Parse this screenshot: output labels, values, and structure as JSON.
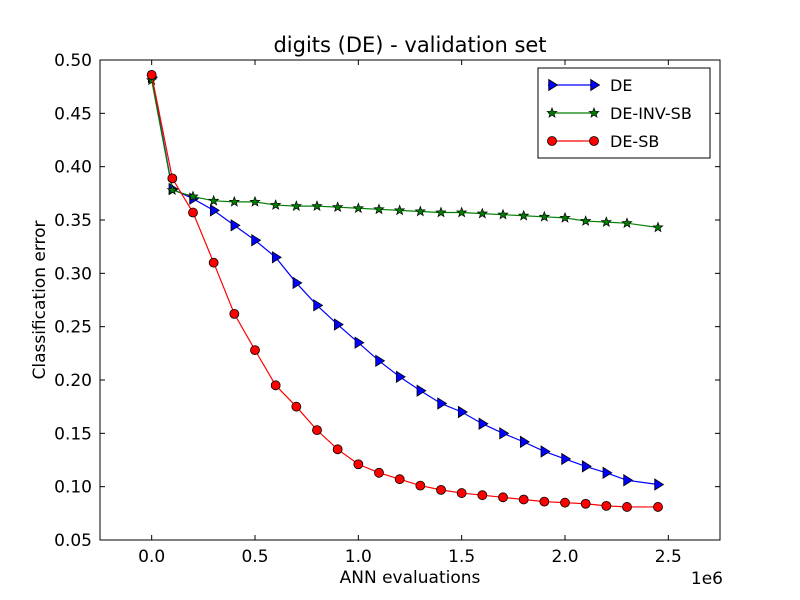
{
  "chart_data": {
    "type": "line",
    "title": "digits (DE) - validation set",
    "xlabel": "ANN evaluations",
    "ylabel": "Classification error",
    "x_multiplier_label": "1e6",
    "x_multiplier": 1000000,
    "xlim": [
      -0.25,
      2.75
    ],
    "ylim": [
      0.05,
      0.5
    ],
    "xticks": [
      0.0,
      0.5,
      1.0,
      1.5,
      2.0,
      2.5
    ],
    "xtick_labels": [
      "0.0",
      "0.5",
      "1.0",
      "1.5",
      "2.0",
      "2.5"
    ],
    "yticks": [
      0.05,
      0.1,
      0.15,
      0.2,
      0.25,
      0.3,
      0.35,
      0.4,
      0.45,
      0.5
    ],
    "ytick_labels": [
      "0.05",
      "0.10",
      "0.15",
      "0.20",
      "0.25",
      "0.30",
      "0.35",
      "0.40",
      "0.45",
      "0.50"
    ],
    "grid": false,
    "legend_position": "top-right",
    "x": [
      0.0,
      0.1,
      0.2,
      0.3,
      0.4,
      0.5,
      0.6,
      0.7,
      0.8,
      0.9,
      1.0,
      1.1,
      1.2,
      1.3,
      1.4,
      1.5,
      1.6,
      1.7,
      1.8,
      1.9,
      2.0,
      2.1,
      2.2,
      2.3,
      2.45
    ],
    "series": [
      {
        "name": "DE",
        "color": "#0000ff",
        "marker": "triangle-right",
        "values": [
          0.484,
          0.379,
          0.37,
          0.359,
          0.345,
          0.331,
          0.315,
          0.291,
          0.27,
          0.252,
          0.235,
          0.218,
          0.203,
          0.19,
          0.178,
          0.17,
          0.159,
          0.15,
          0.142,
          0.133,
          0.126,
          0.119,
          0.113,
          0.106,
          0.102
        ]
      },
      {
        "name": "DE-INV-SB",
        "color": "#008000",
        "marker": "star",
        "values": [
          0.481,
          0.378,
          0.372,
          0.368,
          0.367,
          0.367,
          0.364,
          0.363,
          0.363,
          0.362,
          0.361,
          0.36,
          0.359,
          0.358,
          0.357,
          0.357,
          0.356,
          0.355,
          0.354,
          0.353,
          0.352,
          0.349,
          0.348,
          0.347,
          0.343
        ]
      },
      {
        "name": "DE-SB",
        "color": "#ff0000",
        "marker": "circle",
        "values": [
          0.486,
          0.389,
          0.357,
          0.31,
          0.262,
          0.228,
          0.195,
          0.175,
          0.153,
          0.135,
          0.121,
          0.113,
          0.107,
          0.101,
          0.097,
          0.094,
          0.092,
          0.09,
          0.088,
          0.086,
          0.085,
          0.084,
          0.082,
          0.081,
          0.081
        ]
      }
    ]
  }
}
